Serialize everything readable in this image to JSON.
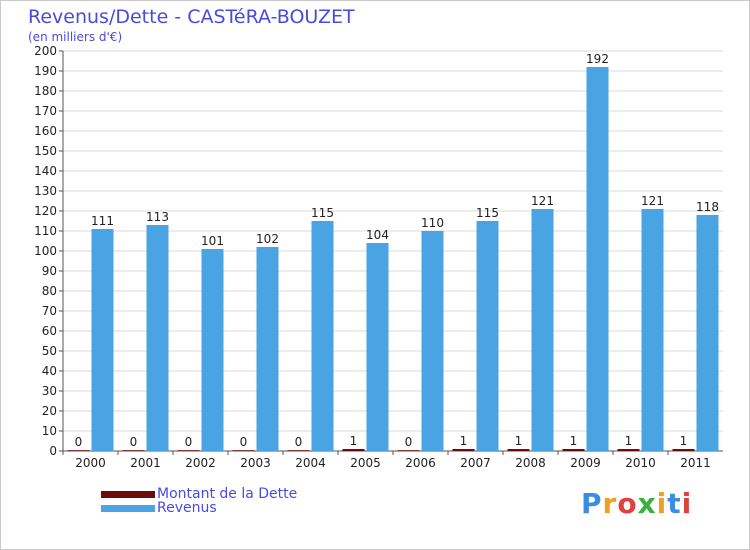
{
  "title": "Revenus/Dette - CASTéRA-BOUZET",
  "subtitle": "(en milliers d'€)",
  "logo_text": "Proxiti",
  "colors": {
    "debt": "#6b0b0b",
    "revenue": "#4aa3e2",
    "axis_text": "#222222",
    "grid": "#d8d8d8",
    "title": "#4a4ae0"
  },
  "legend": [
    {
      "name": "Montant de la Dette",
      "color": "#6b0b0b"
    },
    {
      "name": "Revenus",
      "color": "#4aa3e2"
    }
  ],
  "chart_data": {
    "type": "bar",
    "title": "Revenus/Dette - CASTéRA-BOUZET",
    "ylabel": "(en milliers d'€)",
    "xlabel": "",
    "categories": [
      "2000",
      "2001",
      "2002",
      "2003",
      "2004",
      "2005",
      "2006",
      "2007",
      "2008",
      "2009",
      "2010",
      "2011"
    ],
    "series": [
      {
        "name": "Montant de la Dette",
        "values": [
          0,
          0,
          0,
          0,
          0,
          1,
          0,
          1,
          1,
          1,
          1,
          1
        ]
      },
      {
        "name": "Revenus",
        "values": [
          111,
          113,
          101,
          102,
          115,
          104,
          110,
          115,
          121,
          192,
          121,
          118
        ]
      }
    ],
    "ylim": [
      0,
      200
    ],
    "ytick_step": 10,
    "grid": true,
    "legend_position": "bottom-left"
  }
}
